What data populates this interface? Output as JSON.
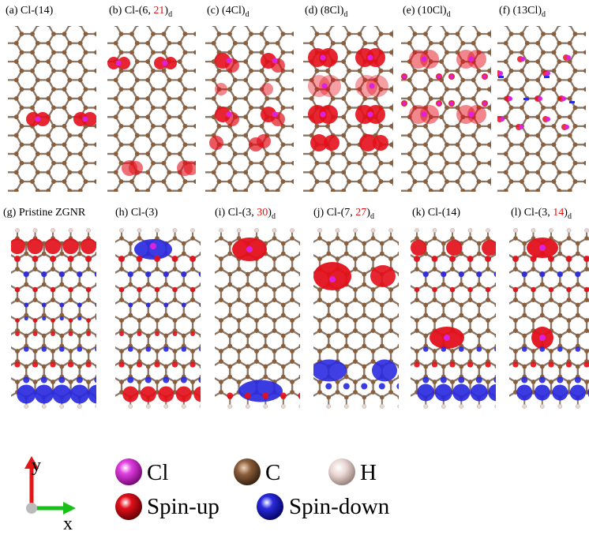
{
  "colors": {
    "bond": "#8a7767",
    "carbon": "#8b5e3c",
    "hydrogen": "#e9d6d2",
    "chlorine": "#dd22dd",
    "spin_up": "#e3101b",
    "spin_down": "#2a2ae0",
    "label_red": "#e01010",
    "axis_y": "#e31515",
    "axis_x": "#18c018"
  },
  "panels": [
    {
      "id": "a",
      "pre": "(a) Cl-(14)",
      "red": "",
      "post": "",
      "sub": ""
    },
    {
      "id": "b",
      "pre": "(b) Cl-(6, ",
      "red": "21",
      "post": ")",
      "sub": "d"
    },
    {
      "id": "c",
      "pre": "(c) (4Cl)",
      "red": "",
      "post": "",
      "sub": "d"
    },
    {
      "id": "d",
      "pre": "(d) (8Cl)",
      "red": "",
      "post": "",
      "sub": "d"
    },
    {
      "id": "e",
      "pre": "(e) (10Cl)",
      "red": "",
      "post": "",
      "sub": "d"
    },
    {
      "id": "f",
      "pre": "(f) (13Cl)",
      "red": "",
      "post": "",
      "sub": "d"
    },
    {
      "id": "g",
      "pre": "(g) Pristine ZGNR",
      "red": "",
      "post": "",
      "sub": ""
    },
    {
      "id": "h",
      "pre": "(h) Cl-(3)",
      "red": "",
      "post": "",
      "sub": ""
    },
    {
      "id": "i",
      "pre": "(i) Cl-(3, ",
      "red": "30",
      "post": ")",
      "sub": "d"
    },
    {
      "id": "j",
      "pre": "(j) Cl-(7, ",
      "red": "27",
      "post": ")",
      "sub": "d"
    },
    {
      "id": "k",
      "pre": "(k) Cl-(14)",
      "red": "",
      "post": "",
      "sub": ""
    },
    {
      "id": "l",
      "pre": "(l) Cl-(3, ",
      "red": "14",
      "post": ")",
      "sub": "d"
    }
  ],
  "legend": {
    "cl": "Cl",
    "c": "C",
    "h": "H",
    "spin_up": "Spin-up",
    "spin_down": "Spin-down",
    "axis_y": "y",
    "axis_x": "x"
  }
}
